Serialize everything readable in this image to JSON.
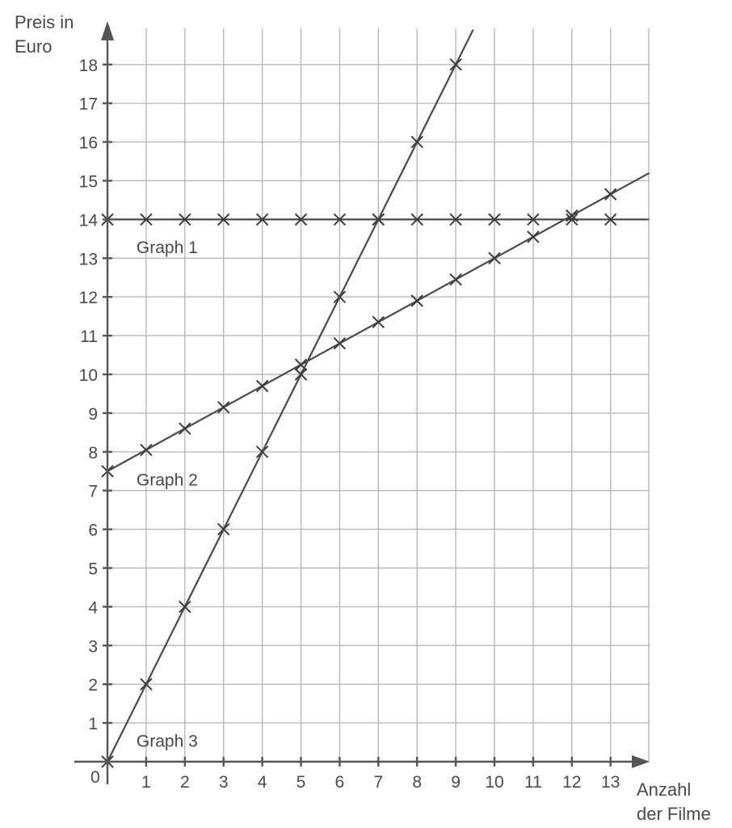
{
  "chart_data": {
    "type": "line",
    "ylabel": [
      "Preis in",
      "Euro"
    ],
    "xlabel": [
      "Anzahl",
      "der Filme"
    ],
    "origin_label": "0",
    "xlim": [
      0,
      14
    ],
    "ylim": [
      0,
      18.9
    ],
    "x_ticks": [
      1,
      2,
      3,
      4,
      5,
      6,
      7,
      8,
      9,
      10,
      11,
      12,
      13
    ],
    "y_ticks": [
      1,
      2,
      3,
      4,
      5,
      6,
      7,
      8,
      9,
      10,
      11,
      12,
      13,
      14,
      15,
      16,
      17,
      18
    ],
    "grid": true,
    "series": [
      {
        "name": "Graph 1",
        "line": [
          [
            0,
            14
          ],
          [
            14,
            14
          ]
        ],
        "points": [
          [
            0,
            14
          ],
          [
            1,
            14
          ],
          [
            2,
            14
          ],
          [
            3,
            14
          ],
          [
            4,
            14
          ],
          [
            5,
            14
          ],
          [
            6,
            14
          ],
          [
            7,
            14
          ],
          [
            8,
            14
          ],
          [
            9,
            14
          ],
          [
            10,
            14
          ],
          [
            11,
            14
          ],
          [
            12,
            14
          ],
          [
            13,
            14
          ]
        ]
      },
      {
        "name": "Graph 2",
        "line": [
          [
            0,
            7.5
          ],
          [
            14,
            15.2
          ]
        ],
        "points": [
          [
            0,
            7.5
          ],
          [
            1,
            8.05
          ],
          [
            2,
            8.6
          ],
          [
            3,
            9.15
          ],
          [
            4,
            9.7
          ],
          [
            5,
            10.25
          ],
          [
            6,
            10.8
          ],
          [
            7,
            11.35
          ],
          [
            8,
            11.9
          ],
          [
            9,
            12.45
          ],
          [
            10,
            13.0
          ],
          [
            11,
            13.55
          ],
          [
            12,
            14.1
          ],
          [
            13,
            14.65
          ]
        ]
      },
      {
        "name": "Graph 3",
        "line": [
          [
            0,
            0
          ],
          [
            9.45,
            18.9
          ]
        ],
        "points": [
          [
            0,
            0
          ],
          [
            1,
            2
          ],
          [
            2,
            4
          ],
          [
            3,
            6
          ],
          [
            4,
            8
          ],
          [
            5,
            10
          ],
          [
            6,
            12
          ],
          [
            7,
            14
          ],
          [
            8,
            16
          ],
          [
            9,
            18
          ]
        ]
      }
    ],
    "labels": [
      {
        "text": "Graph 1",
        "x": 0.75,
        "y": 13.3
      },
      {
        "text": "Graph 2",
        "x": 0.75,
        "y": 7.3
      },
      {
        "text": "Graph 3",
        "x": 0.75,
        "y": 0.55
      }
    ]
  }
}
